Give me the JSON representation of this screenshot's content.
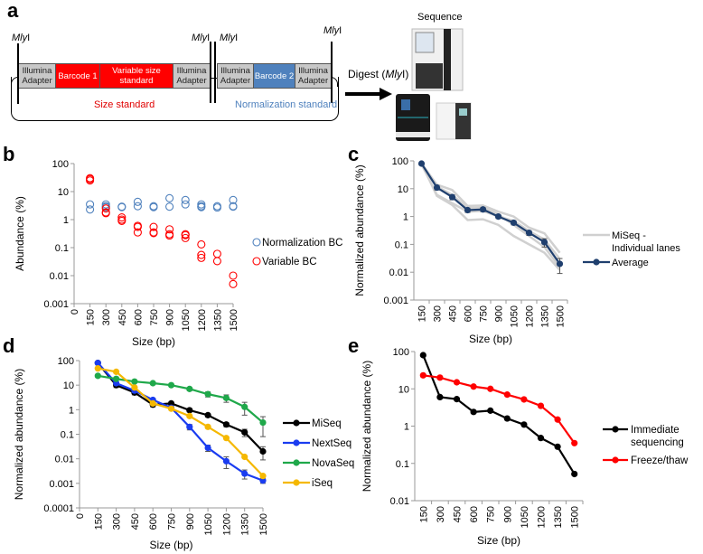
{
  "panels": {
    "a": "a",
    "b": "b",
    "c": "c",
    "d": "d",
    "e": "e"
  },
  "diagram": {
    "enzyme_italic": "Mly",
    "enzyme_suffix": "I",
    "blocks": [
      "Illumina Adapter",
      "Barcode 1",
      "Variable size standard",
      "Illumina Adapter",
      "Illumina Adapter",
      "Barcode 2",
      "Illumina Adapter"
    ],
    "size_standard_label": "Size standard",
    "normalization_standard_label": "Normalization standard",
    "digest_prefix": "Digest (",
    "digest_suffix": ")",
    "sequence_label": "Sequence",
    "colors": {
      "red": "#ff0000",
      "blue": "#4f81bd",
      "grey": "#c8c8c8"
    }
  },
  "chart_data": [
    {
      "id": "b",
      "type": "scatter",
      "title": "",
      "xlabel": "Size (bp)",
      "ylabel": "Abundance (%)",
      "yscale": "log",
      "ylim": [
        0.001,
        100
      ],
      "yticks": [
        "0.001",
        "0.01",
        "0.1",
        "1",
        "10",
        "100"
      ],
      "xticks": [
        "0",
        "150",
        "300",
        "450",
        "600",
        "750",
        "900",
        "1050",
        "1200",
        "1350",
        "1500"
      ],
      "legend_position": "right",
      "series": [
        {
          "name": "Normalization BC",
          "color": "#4f81bd",
          "points": [
            [
              150,
              3.5
            ],
            [
              150,
              2.3
            ],
            [
              300,
              3.5
            ],
            [
              300,
              3.0
            ],
            [
              300,
              2.8
            ],
            [
              450,
              2.8
            ],
            [
              450,
              2.9
            ],
            [
              600,
              4.3
            ],
            [
              600,
              3.0
            ],
            [
              750,
              3.0
            ],
            [
              750,
              2.8
            ],
            [
              900,
              5.8
            ],
            [
              900,
              2.9
            ],
            [
              1050,
              5.0
            ],
            [
              1050,
              3.5
            ],
            [
              1200,
              3.5
            ],
            [
              1200,
              3.0
            ],
            [
              1200,
              2.8
            ],
            [
              1350,
              3.0
            ],
            [
              1350,
              2.7
            ],
            [
              1500,
              5.0
            ],
            [
              1500,
              3.0
            ],
            [
              1500,
              2.9
            ]
          ]
        },
        {
          "name": "Variable BC",
          "color": "#ff0000",
          "points": [
            [
              150,
              30
            ],
            [
              150,
              25
            ],
            [
              150,
              28
            ],
            [
              300,
              2.5
            ],
            [
              300,
              1.8
            ],
            [
              300,
              1.7
            ],
            [
              450,
              1.2
            ],
            [
              450,
              1.0
            ],
            [
              450,
              0.9
            ],
            [
              600,
              0.6
            ],
            [
              600,
              0.55
            ],
            [
              600,
              0.35
            ],
            [
              750,
              0.55
            ],
            [
              750,
              0.35
            ],
            [
              750,
              0.33
            ],
            [
              900,
              0.45
            ],
            [
              900,
              0.3
            ],
            [
              900,
              0.27
            ],
            [
              1050,
              0.3
            ],
            [
              1050,
              0.28
            ],
            [
              1050,
              0.22
            ],
            [
              1200,
              0.13
            ],
            [
              1200,
              0.055
            ],
            [
              1200,
              0.043
            ],
            [
              1350,
              0.06
            ],
            [
              1350,
              0.033
            ],
            [
              1500,
              0.01
            ],
            [
              1500,
              0.005
            ]
          ]
        }
      ]
    },
    {
      "id": "c",
      "type": "line",
      "xlabel": "Size (bp)",
      "ylabel": "Normalized abundance (%)",
      "yscale": "log",
      "ylim": [
        0.001,
        100
      ],
      "yticks": [
        "0.001",
        "0.01",
        "0.1",
        "1",
        "10",
        "100"
      ],
      "xticks": [
        "150",
        "300",
        "450",
        "600",
        "750",
        "900",
        "1050",
        "1200",
        "1350",
        "1500"
      ],
      "x": [
        150,
        300,
        450,
        600,
        750,
        900,
        1050,
        1200,
        1350,
        1500
      ],
      "legend_position": "right",
      "legend": [
        "MiSeq -",
        "Individual lanes",
        "Average"
      ],
      "lanes": [
        [
          80,
          14,
          9,
          2.4,
          2.5,
          1.5,
          1.0,
          0.4,
          0.25,
          0.05
        ],
        [
          75,
          6,
          3,
          1.5,
          1.6,
          1.0,
          0.7,
          0.3,
          0.15,
          0.03
        ],
        [
          82,
          5.5,
          2.6,
          0.75,
          0.8,
          0.5,
          0.2,
          0.1,
          0.05,
          0.012
        ],
        [
          78,
          12,
          6,
          2.0,
          2.1,
          1.2,
          0.5,
          0.2,
          0.08,
          0.015
        ]
      ],
      "series": [
        {
          "name": "Average",
          "color": "#1f3f6e",
          "values": [
            80,
            11,
            5,
            1.7,
            1.8,
            1.0,
            0.6,
            0.26,
            0.12,
            0.02
          ],
          "err": [
            0,
            2,
            1,
            0.3,
            0.3,
            0.15,
            0.1,
            0.05,
            0.04,
            0.011
          ]
        }
      ]
    },
    {
      "id": "d",
      "type": "line",
      "xlabel": "Size (bp)",
      "ylabel": "Normalized abundance (%)",
      "yscale": "log",
      "ylim": [
        0.0001,
        100
      ],
      "yticks": [
        "0.0001",
        "0.001",
        "0.01",
        "0.1",
        "1",
        "10",
        "100"
      ],
      "xticks": [
        "0",
        "150",
        "300",
        "450",
        "600",
        "750",
        "900",
        "1050",
        "1200",
        "1350",
        "1500"
      ],
      "x": [
        150,
        300,
        450,
        600,
        750,
        900,
        1050,
        1200,
        1350,
        1500
      ],
      "legend_position": "right",
      "series": [
        {
          "name": "MiSeq",
          "color": "#000000",
          "values": [
            80,
            10,
            5,
            1.6,
            1.8,
            0.95,
            0.6,
            0.25,
            0.12,
            0.02
          ],
          "err": [
            0,
            2,
            1,
            0.3,
            0.3,
            0.15,
            0.1,
            0.05,
            0.04,
            0.011
          ]
        },
        {
          "name": "NextSeq",
          "color": "#1a3cf0",
          "values": [
            80,
            12,
            6,
            2.5,
            1.2,
            0.2,
            0.028,
            0.008,
            0.0025,
            0.0013
          ],
          "err": [
            0,
            2,
            1,
            0.4,
            0.2,
            0.05,
            0.008,
            0.004,
            0.001,
            0.0003
          ]
        },
        {
          "name": "NovaSeq",
          "color": "#1fa84a",
          "values": [
            24,
            18,
            14,
            12,
            10,
            7,
            4.3,
            3,
            1.3,
            0.3
          ],
          "err": [
            0,
            1,
            1,
            1,
            1,
            1,
            1,
            1,
            0.7,
            0.22
          ]
        },
        {
          "name": "iSeq",
          "color": "#f5b800",
          "values": [
            48,
            35,
            8,
            1.8,
            1.1,
            0.55,
            0.2,
            0.07,
            0.012,
            0.002
          ],
          "err": [
            0,
            0,
            0,
            0,
            0,
            0,
            0,
            0,
            0,
            0
          ]
        }
      ]
    },
    {
      "id": "e",
      "type": "line",
      "xlabel": "Size (bp)",
      "ylabel": "Normalized abundance (%)",
      "yscale": "log",
      "ylim": [
        0.01,
        100
      ],
      "yticks": [
        "0.01",
        "0.1",
        "1",
        "10",
        "100"
      ],
      "xticks": [
        "150",
        "300",
        "450",
        "600",
        "750",
        "900",
        "1050",
        "1200",
        "1350",
        "1500"
      ],
      "x": [
        150,
        300,
        450,
        600,
        750,
        900,
        1050,
        1200,
        1350,
        1500
      ],
      "legend_position": "right",
      "legend": [
        "Immediate",
        "sequencing",
        "Freeze/thaw"
      ],
      "series": [
        {
          "name": "Immediate sequencing",
          "color": "#000000",
          "values": [
            80,
            6,
            5.3,
            2.4,
            2.6,
            1.6,
            1.1,
            0.48,
            0.28,
            0.052
          ]
        },
        {
          "name": "Freeze/thaw",
          "color": "#ff0000",
          "values": [
            23,
            20,
            15,
            11.5,
            10,
            7,
            5.2,
            3.5,
            1.5,
            0.35
          ]
        }
      ]
    }
  ]
}
